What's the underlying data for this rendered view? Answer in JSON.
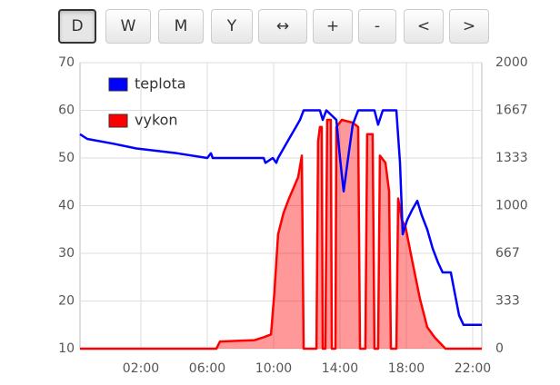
{
  "buttons": [
    "D",
    "W",
    "M",
    "Y",
    "↔",
    "+",
    "-",
    "<",
    ">"
  ],
  "active_button": 0,
  "chart_data": {
    "type": "line",
    "xlim": [
      -1.67,
      22.55
    ],
    "xticks": [
      {
        "value": 2,
        "label": "02:00"
      },
      {
        "value": 6,
        "label": "06:00"
      },
      {
        "value": 10,
        "label": "10:00"
      },
      {
        "value": 14,
        "label": "14:00"
      },
      {
        "value": 18,
        "label": "18:00"
      },
      {
        "value": 22,
        "label": "22:00"
      }
    ],
    "ylim": [
      10,
      70
    ],
    "yticks": [
      10,
      20,
      30,
      40,
      50,
      60,
      70
    ],
    "y2lim": [
      0,
      2000
    ],
    "y2ticks": [
      0,
      333,
      667,
      1000,
      1333,
      1667,
      2000
    ],
    "grid": true,
    "legend": "top-left",
    "series": [
      {
        "name": "teplota",
        "color": "#0000ff",
        "fill": false,
        "x": [
          -1.67,
          -1.23,
          0.36,
          1.73,
          4.19,
          6.0,
          6.22,
          6.33,
          9.4,
          9.51,
          9.95,
          10.16,
          10.27,
          10.6,
          10.93,
          11.26,
          11.59,
          11.81,
          12.79,
          12.96,
          13.18,
          13.78,
          14.0,
          14.22,
          14.49,
          14.77,
          15.1,
          16.08,
          16.3,
          16.58,
          17.4,
          17.62,
          17.78,
          18.05,
          18.33,
          18.66,
          18.93,
          19.26,
          19.59,
          19.92,
          20.19,
          20.68,
          20.9,
          21.18,
          21.45,
          22.55
        ],
        "values": [
          55,
          54,
          53,
          52,
          51,
          50,
          51,
          50,
          50,
          49,
          50,
          49,
          50,
          52,
          54,
          56,
          58,
          60,
          60,
          58,
          60,
          58,
          50,
          43,
          50,
          57,
          60,
          60,
          57,
          60,
          60,
          49,
          34,
          37,
          39,
          41,
          38,
          35,
          31,
          28,
          26,
          26,
          22,
          17,
          15,
          15
        ]
      },
      {
        "name": "vykon",
        "color": "#ff0000",
        "fill": true,
        "axis": "y2",
        "x": [
          -1.67,
          6.55,
          6.77,
          8.85,
          9.4,
          9.84,
          10.05,
          10.27,
          10.6,
          10.93,
          11.48,
          11.7,
          11.81,
          12.58,
          12.68,
          12.79,
          12.9,
          12.96,
          13.12,
          13.23,
          13.45,
          13.51,
          13.73,
          13.78,
          14.11,
          14.77,
          15.1,
          15.21,
          15.53,
          15.64,
          15.97,
          16.08,
          16.3,
          16.41,
          16.74,
          16.96,
          17.07,
          17.4,
          17.51,
          17.73,
          17.95,
          18.38,
          18.82,
          19.26,
          19.7,
          20.36,
          22.55
        ],
        "values": [
          0,
          0,
          50,
          60,
          80,
          100,
          400,
          800,
          950,
          1050,
          1200,
          1350,
          0,
          0,
          1450,
          1550,
          1550,
          0,
          0,
          1600,
          1600,
          0,
          0,
          1550,
          1600,
          1580,
          1550,
          0,
          0,
          1500,
          1500,
          0,
          0,
          1350,
          1300,
          1100,
          0,
          0,
          1050,
          900,
          850,
          600,
          350,
          150,
          80,
          0,
          0
        ]
      }
    ]
  }
}
